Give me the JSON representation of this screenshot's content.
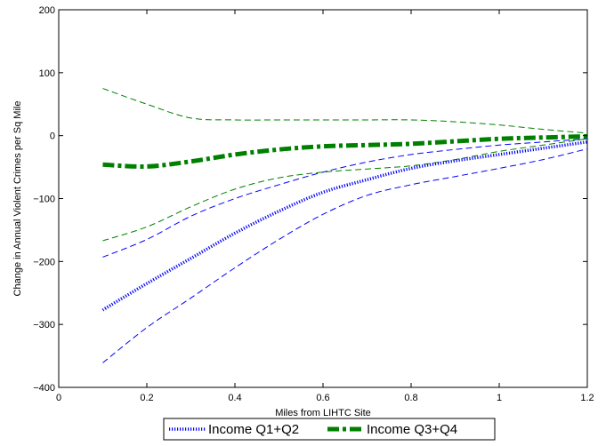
{
  "chart_data": {
    "type": "line",
    "title": "",
    "xlabel": "Miles from LIHTC Site",
    "ylabel": "Change in Annual Violent Crimes per Sq Mile",
    "xlim": [
      0,
      1.2
    ],
    "ylim": [
      -400,
      200
    ],
    "xticks": [
      0,
      0.2,
      0.4,
      0.6,
      0.8,
      1,
      1.2
    ],
    "xtick_labels": [
      "0",
      "0.2",
      "0.4",
      "0.6",
      "0.8",
      "1",
      "1.2"
    ],
    "yticks": [
      -400,
      -300,
      -200,
      -100,
      0,
      100,
      200
    ],
    "ytick_labels": [
      "−400",
      "−300",
      "−200",
      "−100",
      "0",
      "100",
      "200"
    ],
    "grid": false,
    "legend_position": "bottom",
    "series": [
      {
        "name": "Income Q1+Q2",
        "color": "#0000ff",
        "style": "dotted",
        "x": [
          0.1,
          0.2,
          0.3,
          0.4,
          0.5,
          0.6,
          0.7,
          0.8,
          0.9,
          1.0,
          1.1,
          1.2
        ],
        "y": [
          -277,
          -235,
          -195,
          -155,
          -120,
          -90,
          -70,
          -52,
          -40,
          -30,
          -20,
          -10
        ]
      },
      {
        "name": "Income Q3+Q4",
        "color": "#008000",
        "style": "dashdot",
        "x": [
          0.1,
          0.2,
          0.3,
          0.4,
          0.5,
          0.6,
          0.7,
          0.8,
          0.9,
          1.0,
          1.1,
          1.2
        ],
        "y": [
          -46,
          -49,
          -41,
          -30,
          -22,
          -17,
          -15,
          -13,
          -9,
          -5,
          -3,
          -1
        ]
      },
      {
        "name": "",
        "color": "#0000ff",
        "style": "dashed",
        "x": [
          0.1,
          0.2,
          0.3,
          0.4,
          0.5,
          0.6,
          0.7,
          0.8,
          0.9,
          1.0,
          1.1,
          1.2
        ],
        "y": [
          -193,
          -165,
          -128,
          -100,
          -78,
          -58,
          -42,
          -30,
          -22,
          -15,
          -10,
          -5
        ]
      },
      {
        "name": "",
        "color": "#0000ff",
        "style": "dashed",
        "x": [
          0.1,
          0.2,
          0.3,
          0.4,
          0.5,
          0.6,
          0.7,
          0.8,
          0.9,
          1.0,
          1.1,
          1.2
        ],
        "y": [
          -361,
          -305,
          -258,
          -210,
          -165,
          -125,
          -95,
          -78,
          -65,
          -52,
          -38,
          -21
        ]
      },
      {
        "name": "",
        "color": "#008000",
        "style": "dashed",
        "x": [
          0.1,
          0.2,
          0.3,
          0.4,
          0.5,
          0.6,
          0.7,
          0.8,
          0.9,
          1.0,
          1.1,
          1.2
        ],
        "y": [
          -167,
          -145,
          -113,
          -85,
          -67,
          -58,
          -53,
          -48,
          -38,
          -25,
          -15,
          -5
        ]
      },
      {
        "name": "",
        "color": "#008000",
        "style": "dashed",
        "x": [
          0.1,
          0.2,
          0.3,
          0.4,
          0.5,
          0.6,
          0.7,
          0.8,
          0.9,
          1.0,
          1.1,
          1.2
        ],
        "y": [
          75,
          50,
          28,
          25,
          25,
          25,
          25,
          25,
          22,
          17,
          10,
          4
        ]
      }
    ]
  }
}
